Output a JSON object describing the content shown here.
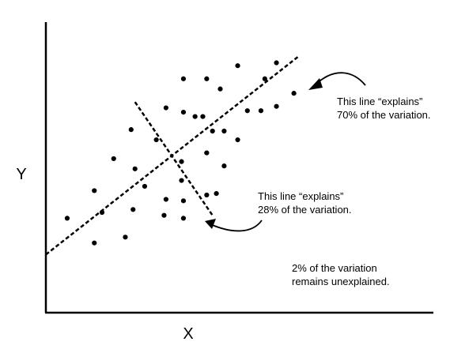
{
  "chart_data": {
    "type": "scatter",
    "xlabel": "X",
    "ylabel": "Y",
    "grid": false,
    "xlim": [
      0,
      10
    ],
    "ylim": [
      0,
      10
    ],
    "points": [
      {
        "x": 0.55,
        "y": 3.25
      },
      {
        "x": 1.25,
        "y": 2.4
      },
      {
        "x": 1.25,
        "y": 4.2
      },
      {
        "x": 1.45,
        "y": 3.45
      },
      {
        "x": 1.75,
        "y": 5.3
      },
      {
        "x": 2.05,
        "y": 2.6
      },
      {
        "x": 2.2,
        "y": 6.3
      },
      {
        "x": 2.25,
        "y": 3.55
      },
      {
        "x": 2.3,
        "y": 4.95
      },
      {
        "x": 2.55,
        "y": 4.35
      },
      {
        "x": 2.85,
        "y": 5.95
      },
      {
        "x": 3.1,
        "y": 7.05
      },
      {
        "x": 3.05,
        "y": 3.35
      },
      {
        "x": 3.1,
        "y": 3.9
      },
      {
        "x": 3.5,
        "y": 5.2
      },
      {
        "x": 3.5,
        "y": 4.55
      },
      {
        "x": 3.55,
        "y": 3.85
      },
      {
        "x": 3.55,
        "y": 3.25
      },
      {
        "x": 3.55,
        "y": 6.9
      },
      {
        "x": 3.55,
        "y": 8.05
      },
      {
        "x": 3.85,
        "y": 6.75
      },
      {
        "x": 4.05,
        "y": 6.75
      },
      {
        "x": 4.15,
        "y": 8.05
      },
      {
        "x": 4.15,
        "y": 5.5
      },
      {
        "x": 4.15,
        "y": 4.05
      },
      {
        "x": 4.3,
        "y": 6.25
      },
      {
        "x": 4.4,
        "y": 4.1
      },
      {
        "x": 4.5,
        "y": 7.7
      },
      {
        "x": 4.6,
        "y": 5.05
      },
      {
        "x": 4.6,
        "y": 6.25
      },
      {
        "x": 4.95,
        "y": 8.5
      },
      {
        "x": 4.95,
        "y": 5.95
      },
      {
        "x": 5.2,
        "y": 6.95
      },
      {
        "x": 5.55,
        "y": 6.95
      },
      {
        "x": 5.65,
        "y": 8.05
      },
      {
        "x": 5.95,
        "y": 8.6
      },
      {
        "x": 5.95,
        "y": 7.1
      },
      {
        "x": 6.4,
        "y": 7.55
      }
    ],
    "lines": [
      {
        "x": [
          0,
          6.5
        ],
        "y": [
          2,
          8.8
        ]
      },
      {
        "x": [
          2.3,
          4.3
        ],
        "y": [
          7.25,
          3.35
        ]
      }
    ],
    "annotations": [
      {
        "text": [
          "This line “explains”",
          "70% of the variation."
        ]
      },
      {
        "text": [
          "This line “explains”",
          "28% of the variation."
        ]
      },
      {
        "text": [
          "2% of the variation",
          "remains unexplained."
        ]
      }
    ]
  }
}
